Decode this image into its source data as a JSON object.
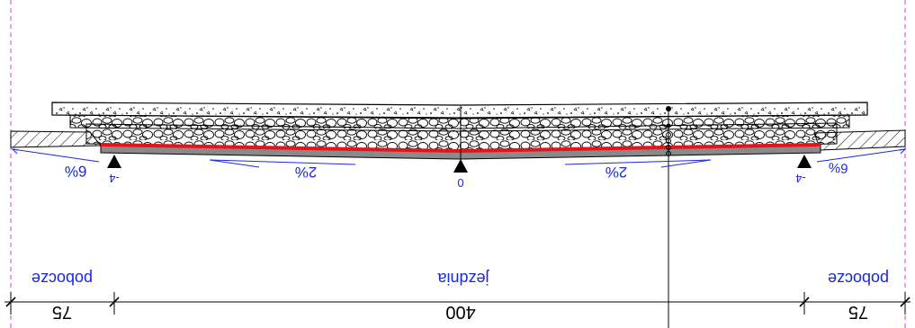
{
  "colors": {
    "annotation": "#1a2ad8",
    "membrane": "#e8121a",
    "axis": "#e23ad8",
    "ink": "#000000"
  },
  "slopes": {
    "left_shoulder": "6%",
    "left_lane": "2%",
    "right_lane": "2%",
    "right_shoulder": "6%"
  },
  "levels": {
    "left": "-4",
    "center": "0",
    "right": "-4"
  },
  "zones": {
    "left": "pobocze",
    "center": "jezdnia",
    "right": "pobocze"
  },
  "dimensions": {
    "left": "75",
    "center": "400",
    "right": "75"
  }
}
